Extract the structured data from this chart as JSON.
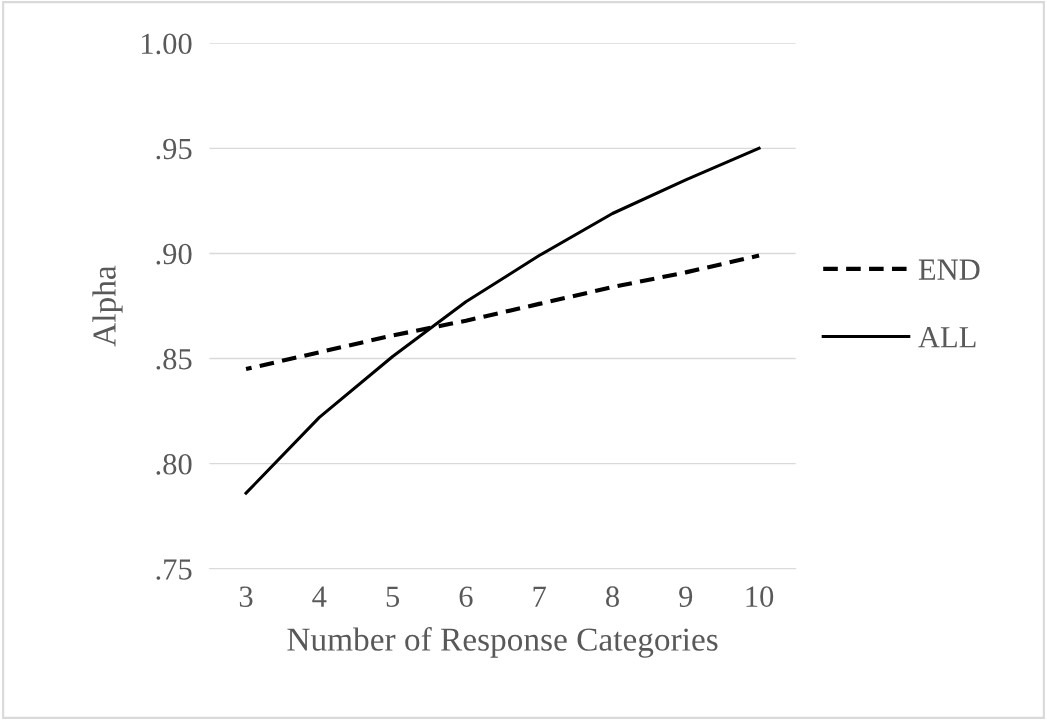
{
  "chart_data": {
    "type": "line",
    "xlabel": "Number of Response Categories",
    "ylabel": "Alpha",
    "categories": [
      "3",
      "4",
      "5",
      "6",
      "7",
      "8",
      "9",
      "10"
    ],
    "series": [
      {
        "name": "END",
        "color": "#000000",
        "line_style": "dashed",
        "values": [
          0.845,
          0.853,
          0.861,
          0.868,
          0.876,
          0.884,
          0.891,
          0.899
        ]
      },
      {
        "name": "ALL",
        "color": "#000000",
        "line_style": "solid",
        "values": [
          0.786,
          0.822,
          0.851,
          0.877,
          0.899,
          0.919,
          0.935,
          0.95
        ]
      }
    ],
    "ylim": [
      0.75,
      1.0
    ],
    "yticks": [
      {
        "value": 0.75,
        "label": ".75"
      },
      {
        "value": 0.8,
        "label": ".80"
      },
      {
        "value": 0.85,
        "label": ".85"
      },
      {
        "value": 0.9,
        "label": ".90"
      },
      {
        "value": 0.95,
        "label": ".95"
      },
      {
        "value": 1.0,
        "label": "1.00"
      }
    ],
    "grid": "y",
    "legend": "right",
    "marker": "none"
  }
}
